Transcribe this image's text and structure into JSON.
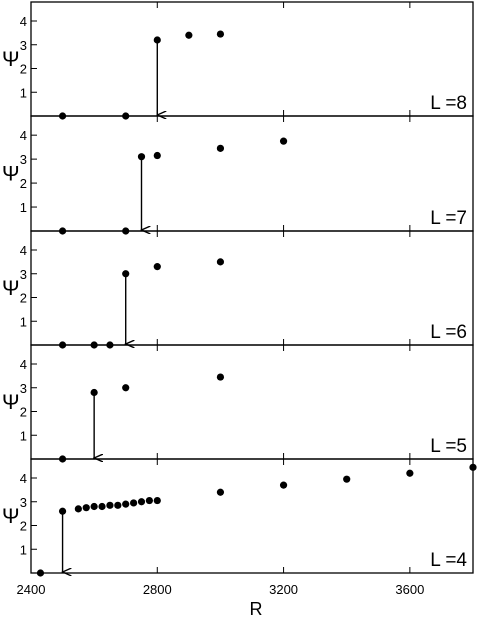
{
  "chart_data": {
    "type": "scatter",
    "xlabel": "R",
    "ylabel": "Ψ",
    "xlim": [
      2400,
      3800
    ],
    "ylim": [
      0,
      4.8
    ],
    "x_ticks": [
      2400,
      2800,
      3200,
      3600
    ],
    "y_ticks": [
      1,
      2,
      3,
      4
    ],
    "grid": false,
    "panels": [
      {
        "label": "L =8",
        "arrow_x": 2800,
        "arrow_from_y": 3.2,
        "x": [
          2500,
          2700,
          2800,
          2900,
          3000
        ],
        "y": [
          0,
          0,
          3.2,
          3.4,
          3.45
        ]
      },
      {
        "label": "L =7",
        "arrow_x": 2750,
        "arrow_from_y": 3.1,
        "x": [
          2500,
          2700,
          2750,
          2800,
          3000,
          3200
        ],
        "y": [
          0,
          0,
          3.1,
          3.15,
          3.45,
          3.75
        ]
      },
      {
        "label": "L =6",
        "arrow_x": 2700,
        "arrow_from_y": 3.0,
        "x": [
          2500,
          2600,
          2650,
          2700,
          2800,
          3000
        ],
        "y": [
          0,
          0,
          0,
          3.0,
          3.3,
          3.5
        ]
      },
      {
        "label": "L =5",
        "arrow_x": 2600,
        "arrow_from_y": 2.8,
        "x": [
          2500,
          2600,
          2700,
          3000
        ],
        "y": [
          0,
          2.8,
          3.0,
          3.45
        ]
      },
      {
        "label": "L =4",
        "arrow_x": 2500,
        "arrow_from_y": 2.6,
        "x": [
          2430,
          2500,
          2550,
          2575,
          2600,
          2625,
          2650,
          2675,
          2700,
          2725,
          2750,
          2775,
          2800,
          3000,
          3200,
          3400,
          3600,
          3800
        ],
        "y": [
          0,
          2.6,
          2.7,
          2.75,
          2.8,
          2.8,
          2.85,
          2.85,
          2.9,
          2.95,
          3.0,
          3.05,
          3.05,
          3.4,
          3.7,
          3.95,
          4.2,
          4.45
        ]
      }
    ]
  }
}
